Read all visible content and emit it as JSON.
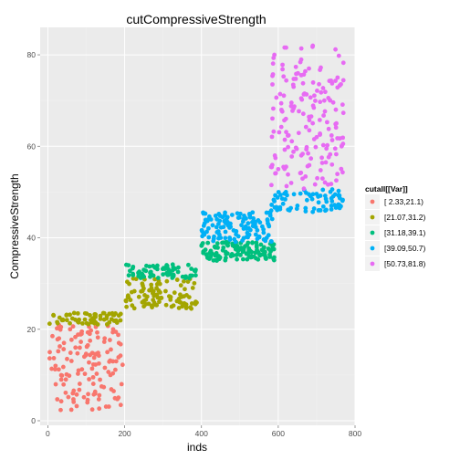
{
  "chart_data": {
    "type": "scatter",
    "title": "cutCompressiveStrength",
    "xlabel": "inds",
    "ylabel": "CompressiveStrength",
    "xlim": [
      -20,
      800
    ],
    "ylim": [
      -1,
      86
    ],
    "x_ticks": [
      0,
      200,
      400,
      600,
      800
    ],
    "y_ticks": [
      0,
      20,
      40,
      60,
      80
    ],
    "grid": true,
    "legend_title": "cutall[[Var]]",
    "legend_position": "right",
    "series": [
      {
        "name": "[ 2.33,21.1)",
        "color": "#F8766D",
        "x_range": [
          0,
          195
        ],
        "y_range": [
          2.33,
          21.1
        ],
        "n": 140,
        "values": [
          [
            5,
            15
          ],
          [
            12,
            18.5
          ],
          [
            20,
            12
          ],
          [
            28,
            21
          ],
          [
            35,
            9
          ],
          [
            42,
            17
          ],
          [
            50,
            13.5
          ],
          [
            58,
            20
          ],
          [
            65,
            6
          ],
          [
            72,
            16
          ],
          [
            80,
            11
          ],
          [
            88,
            19
          ],
          [
            95,
            14
          ],
          [
            103,
            4
          ],
          [
            110,
            17.5
          ],
          [
            118,
            9.5
          ],
          [
            125,
            20.5
          ],
          [
            133,
            12.5
          ],
          [
            140,
            7.5
          ],
          [
            148,
            18
          ],
          [
            155,
            15
          ],
          [
            163,
            10
          ],
          [
            170,
            20
          ],
          [
            178,
            13
          ],
          [
            185,
            17
          ],
          [
            192,
            8
          ]
        ]
      },
      {
        "name": "[21.07,31.2)",
        "color": "#A3A500",
        "x_range": [
          0,
          390
        ],
        "y_range": [
          21.07,
          31.2
        ],
        "n": 160,
        "values": [
          [
            15,
            23
          ],
          [
            40,
            22
          ],
          [
            80,
            21.5
          ],
          [
            120,
            22.5
          ],
          [
            160,
            21.5
          ],
          [
            185,
            23
          ],
          [
            210,
            27
          ],
          [
            230,
            31
          ],
          [
            250,
            25
          ],
          [
            270,
            29
          ],
          [
            290,
            26
          ],
          [
            310,
            30.5
          ],
          [
            330,
            28
          ],
          [
            350,
            25
          ],
          [
            370,
            31
          ],
          [
            385,
            26
          ]
        ]
      },
      {
        "name": "[31.18,39.1)",
        "color": "#00BF7D",
        "x_range": [
          200,
          590
        ],
        "y_range": [
          31.18,
          39.1
        ],
        "n": 190,
        "values": [
          [
            210,
            34
          ],
          [
            250,
            33
          ],
          [
            300,
            32
          ],
          [
            340,
            33.5
          ],
          [
            385,
            33
          ],
          [
            405,
            37
          ],
          [
            440,
            35
          ],
          [
            470,
            39
          ],
          [
            500,
            37.5
          ],
          [
            530,
            36
          ],
          [
            555,
            38.5
          ],
          [
            580,
            37
          ]
        ]
      },
      {
        "name": "[39.09,50.7)",
        "color": "#00B0F6",
        "x_range": [
          400,
          770
        ],
        "y_range": [
          39.09,
          50.7
        ],
        "n": 190,
        "values": [
          [
            405,
            41
          ],
          [
            425,
            44
          ],
          [
            450,
            40
          ],
          [
            480,
            45
          ],
          [
            510,
            42
          ],
          [
            540,
            43.5
          ],
          [
            570,
            40
          ],
          [
            590,
            48
          ],
          [
            620,
            50
          ],
          [
            650,
            47
          ],
          [
            680,
            49.5
          ],
          [
            710,
            46
          ],
          [
            740,
            48
          ],
          [
            760,
            46.5
          ]
        ]
      },
      {
        "name": "[50.73,81.8)",
        "color": "#E76BF3",
        "x_range": [
          580,
          770
        ],
        "y_range": [
          50.73,
          81.8
        ],
        "n": 180,
        "values": [
          [
            590,
            80
          ],
          [
            600,
            55
          ],
          [
            620,
            66
          ],
          [
            640,
            73
          ],
          [
            660,
            58
          ],
          [
            680,
            77
          ],
          [
            690,
            82
          ],
          [
            700,
            62
          ],
          [
            720,
            70
          ],
          [
            740,
            56
          ],
          [
            750,
            68
          ],
          [
            765,
            60
          ]
        ]
      }
    ]
  }
}
